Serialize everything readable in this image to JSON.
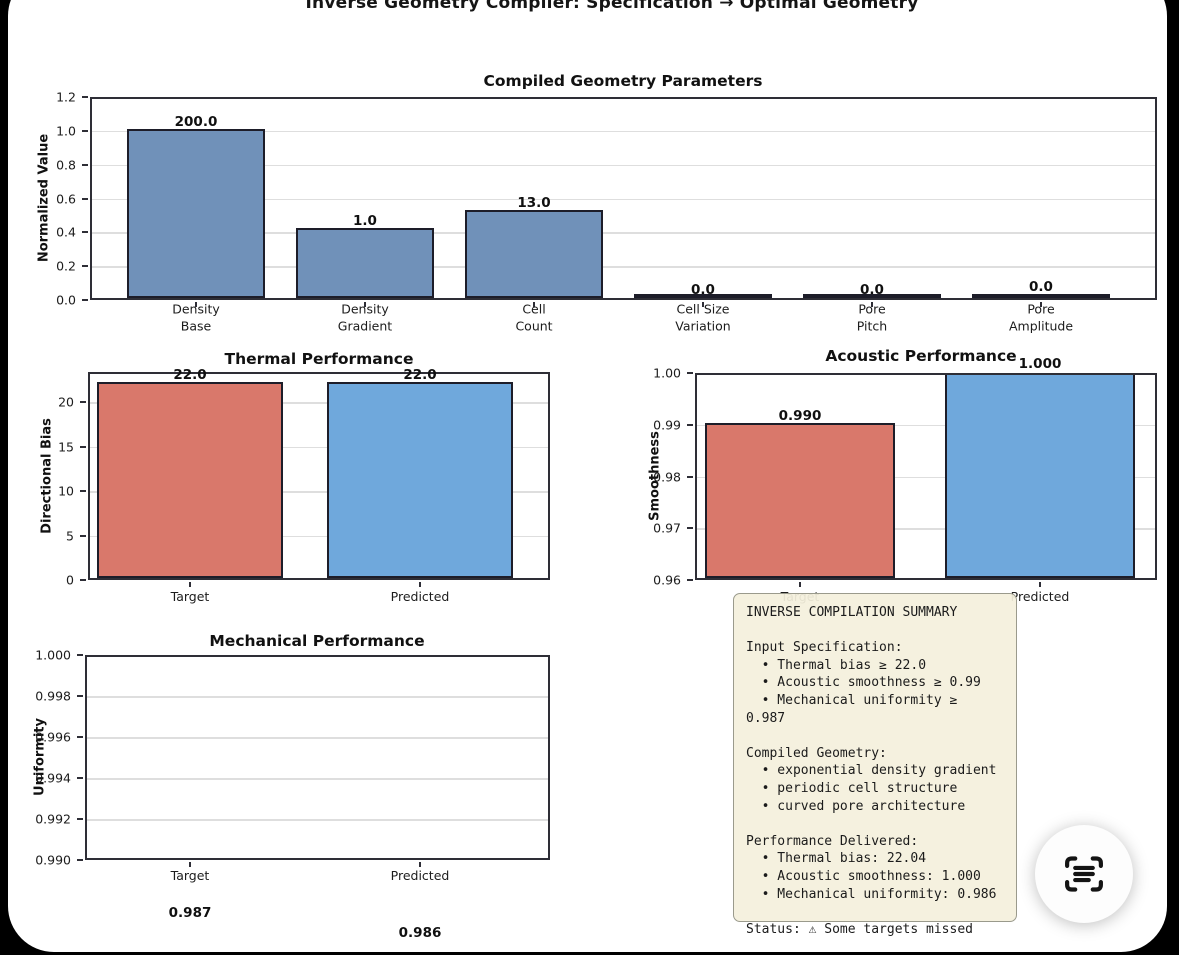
{
  "figure": {
    "title": "Inverse Geometry Compiler: Specification → Optimal Geometry"
  },
  "colors": {
    "param_bar": "#7091b9",
    "target_bar": "#d9786b",
    "predicted_bar": "#6fa8dc",
    "bar_edge": "#1d1d29",
    "summary_bg": "#f4f0dd",
    "summary_border": "#9a9a8c"
  },
  "chart_data": [
    {
      "type": "bar",
      "title": "Compiled Geometry Parameters",
      "ylabel": "Normalized Value",
      "ylim": [
        0.0,
        1.2
      ],
      "yticks": [
        "0.0",
        "0.2",
        "0.4",
        "0.6",
        "0.8",
        "1.0",
        "1.2"
      ],
      "ytick_values": [
        0.0,
        0.2,
        0.4,
        0.6,
        0.8,
        1.0,
        1.2
      ],
      "grid": true,
      "legend": "none",
      "categories": [
        "Density\nBase",
        "Density\nGradient",
        "Cell\nCount",
        "Cell Size\nVariation",
        "Pore\nPitch",
        "Pore\nAmplitude"
      ],
      "values": [
        200.0,
        1.0,
        13.0,
        0.0,
        0.0,
        0.0
      ],
      "labels": [
        "200.0",
        "1.0",
        "13.0",
        "0.0",
        "0.0",
        "0.0"
      ],
      "plotted_heights": [
        1.0,
        0.414,
        0.52,
        0.008,
        0.008,
        0.024
      ],
      "bar_color": "param"
    },
    {
      "type": "bar",
      "title": "Thermal Performance",
      "ylabel": "Directional Bias",
      "ylim": [
        0,
        23.4
      ],
      "yticks": [
        "0",
        "5",
        "10",
        "15",
        "20"
      ],
      "ytick_values": [
        0,
        5,
        10,
        15,
        20
      ],
      "grid": true,
      "categories": [
        "Target",
        "Predicted"
      ],
      "values": [
        22.0,
        22.0
      ],
      "labels": [
        "22.0",
        "22.0"
      ],
      "colors": [
        "target",
        "predicted"
      ]
    },
    {
      "type": "bar",
      "title": "Acoustic Performance",
      "ylabel": "Smoothness",
      "ylim": [
        0.96,
        1.0
      ],
      "yticks": [
        "0.96",
        "0.97",
        "0.98",
        "0.99",
        "1.00"
      ],
      "ytick_values": [
        0.96,
        0.97,
        0.98,
        0.99,
        1.0
      ],
      "grid": true,
      "categories": [
        "Target",
        "Predicted"
      ],
      "values": [
        0.99,
        1.0
      ],
      "labels": [
        "0.990",
        "1.000"
      ],
      "colors": [
        "target",
        "predicted"
      ]
    },
    {
      "type": "bar",
      "title": "Mechanical Performance",
      "ylabel": "Uniformity",
      "ylim": [
        0.99,
        1.0
      ],
      "yticks": [
        "0.990",
        "0.992",
        "0.994",
        "0.996",
        "0.998",
        "1.000"
      ],
      "ytick_values": [
        0.99,
        0.992,
        0.994,
        0.996,
        0.998,
        1.0
      ],
      "grid": true,
      "categories": [
        "Target",
        "Predicted"
      ],
      "values": [
        0.987,
        0.986
      ],
      "labels": [
        "0.987",
        "0.986"
      ],
      "colors": [
        "target",
        "predicted"
      ],
      "note": "bars fall below axis minimum; only value labels visible"
    }
  ],
  "summary": {
    "lines": [
      "INVERSE COMPILATION SUMMARY",
      "",
      "Input Specification:",
      "  • Thermal bias ≥ 22.0",
      "  • Acoustic smoothness ≥ 0.99",
      "  • Mechanical uniformity ≥ 0.987",
      "",
      "Compiled Geometry:",
      "  • exponential density gradient",
      "  • periodic cell structure",
      "  • curved pore architecture",
      "",
      "Performance Delivered:",
      "  • Thermal bias: 22.04",
      "  • Acoustic smoothness: 1.000",
      "  • Mechanical uniformity: 0.986",
      "",
      "Status: ⚠ Some targets missed"
    ]
  },
  "fab": {
    "icon": "scan-text"
  }
}
